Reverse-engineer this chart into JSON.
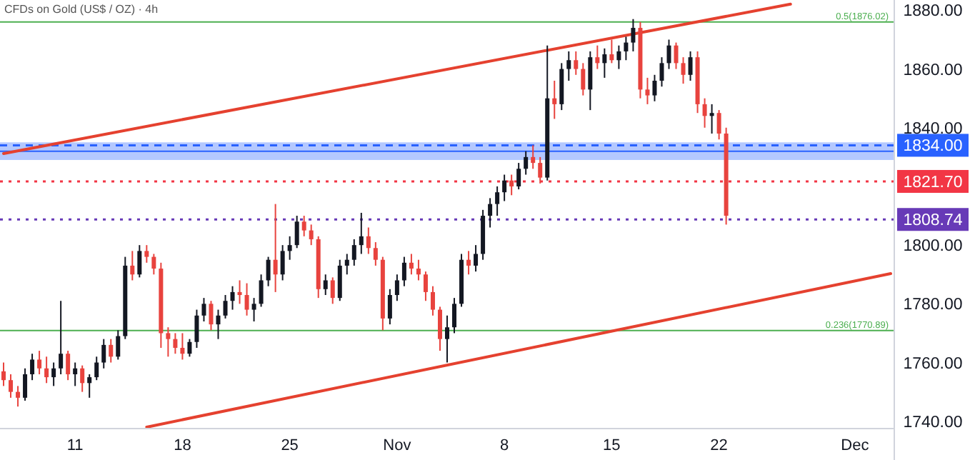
{
  "chart_data": {
    "type": "candlestick",
    "title": "CFDs on Gold (US$ / OZ) · 4h",
    "categories": [
      null,
      null,
      null,
      null,
      null,
      null,
      null,
      null,
      null,
      null,
      "11",
      null,
      null,
      null,
      null,
      null,
      null,
      null,
      null,
      null,
      null,
      null,
      null,
      null,
      null,
      "18",
      null,
      null,
      null,
      null,
      null,
      null,
      null,
      null,
      null,
      null,
      null,
      null,
      null,
      null,
      "25",
      null,
      null,
      null,
      null,
      null,
      null,
      null,
      null,
      null,
      null,
      null,
      null,
      null,
      null,
      "Nov",
      null,
      null,
      null,
      null,
      null,
      null,
      null,
      null,
      null,
      null,
      null,
      null,
      null,
      null,
      "8",
      null,
      null,
      null,
      null,
      null,
      null,
      null,
      null,
      null,
      null,
      null,
      null,
      null,
      null,
      "15",
      null,
      null,
      null,
      null,
      null,
      null,
      null,
      null,
      null,
      null,
      null,
      null,
      null,
      null,
      "22",
      null,
      null,
      null,
      null,
      null,
      null,
      null,
      null,
      null,
      null,
      null,
      null,
      null,
      null,
      null,
      null,
      null,
      null,
      "Dec",
      null,
      null,
      null,
      null,
      null
    ],
    "ohlc": [
      [
        1757,
        1760,
        1752,
        1754
      ],
      [
        1754,
        1756,
        1748,
        1750
      ],
      [
        1750,
        1752,
        1745,
        1748
      ],
      [
        1748,
        1758,
        1747,
        1756
      ],
      [
        1756,
        1763,
        1754,
        1761
      ],
      [
        1761,
        1764,
        1756,
        1758
      ],
      [
        1758,
        1762,
        1753,
        1755
      ],
      [
        1755,
        1760,
        1752,
        1758
      ],
      [
        1758,
        1781,
        1756,
        1763
      ],
      [
        1763,
        1764,
        1754,
        1756
      ],
      [
        1756,
        1760,
        1752,
        1758
      ],
      [
        1758,
        1759,
        1750,
        1753
      ],
      [
        1753,
        1756,
        1748,
        1755
      ],
      [
        1755,
        1762,
        1754,
        1760
      ],
      [
        1760,
        1768,
        1758,
        1766
      ],
      [
        1766,
        1768,
        1760,
        1762
      ],
      [
        1762,
        1771,
        1761,
        1769
      ],
      [
        1769,
        1796,
        1768,
        1793
      ],
      [
        1793,
        1798,
        1788,
        1790
      ],
      [
        1790,
        1800,
        1789,
        1798
      ],
      [
        1798,
        1800,
        1794,
        1796
      ],
      [
        1796,
        1797,
        1790,
        1792
      ],
      [
        1792,
        1794,
        1765,
        1770
      ],
      [
        1770,
        1772,
        1762,
        1768
      ],
      [
        1768,
        1770,
        1763,
        1765
      ],
      [
        1765,
        1770,
        1761,
        1763
      ],
      [
        1763,
        1768,
        1762,
        1767
      ],
      [
        1767,
        1778,
        1765,
        1776
      ],
      [
        1776,
        1782,
        1774,
        1780
      ],
      [
        1780,
        1781,
        1771,
        1773
      ],
      [
        1773,
        1778,
        1768,
        1776
      ],
      [
        1776,
        1783,
        1775,
        1781
      ],
      [
        1781,
        1786,
        1778,
        1784
      ],
      [
        1784,
        1788,
        1780,
        1783
      ],
      [
        1783,
        1787,
        1776,
        1778
      ],
      [
        1778,
        1782,
        1774,
        1780
      ],
      [
        1780,
        1790,
        1779,
        1788
      ],
      [
        1788,
        1796,
        1786,
        1795
      ],
      [
        1795,
        1814,
        1784,
        1790
      ],
      [
        1790,
        1800,
        1788,
        1798
      ],
      [
        1798,
        1803,
        1795,
        1800
      ],
      [
        1800,
        1810,
        1799,
        1808
      ],
      [
        1808,
        1810,
        1803,
        1805
      ],
      [
        1805,
        1807,
        1800,
        1802
      ],
      [
        1802,
        1803,
        1782,
        1785
      ],
      [
        1785,
        1790,
        1783,
        1788
      ],
      [
        1788,
        1789,
        1780,
        1782
      ],
      [
        1782,
        1795,
        1781,
        1793
      ],
      [
        1793,
        1797,
        1790,
        1795
      ],
      [
        1795,
        1802,
        1793,
        1800
      ],
      [
        1800,
        1811,
        1797,
        1803
      ],
      [
        1803,
        1806,
        1797,
        1799
      ],
      [
        1799,
        1801,
        1793,
        1795
      ],
      [
        1795,
        1796,
        1771,
        1775
      ],
      [
        1775,
        1785,
        1773,
        1783
      ],
      [
        1783,
        1790,
        1781,
        1788
      ],
      [
        1788,
        1796,
        1786,
        1794
      ],
      [
        1794,
        1797,
        1790,
        1792
      ],
      [
        1792,
        1795,
        1788,
        1790
      ],
      [
        1790,
        1791,
        1781,
        1784
      ],
      [
        1784,
        1786,
        1776,
        1778
      ],
      [
        1778,
        1779,
        1764,
        1768
      ],
      [
        1768,
        1776,
        1760,
        1772
      ],
      [
        1772,
        1782,
        1770,
        1780
      ],
      [
        1780,
        1797,
        1779,
        1795
      ],
      [
        1795,
        1798,
        1790,
        1793
      ],
      [
        1793,
        1800,
        1791,
        1797
      ],
      [
        1797,
        1812,
        1795,
        1810
      ],
      [
        1810,
        1816,
        1806,
        1814
      ],
      [
        1814,
        1820,
        1810,
        1818
      ],
      [
        1818,
        1824,
        1815,
        1822
      ],
      [
        1822,
        1824,
        1817,
        1820
      ],
      [
        1820,
        1828,
        1819,
        1826
      ],
      [
        1826,
        1832,
        1824,
        1830
      ],
      [
        1830,
        1834,
        1826,
        1828
      ],
      [
        1828,
        1830,
        1821,
        1823
      ],
      [
        1823,
        1868,
        1822,
        1850
      ],
      [
        1850,
        1856,
        1843,
        1848
      ],
      [
        1848,
        1862,
        1846,
        1860
      ],
      [
        1860,
        1866,
        1856,
        1863
      ],
      [
        1863,
        1866,
        1858,
        1860
      ],
      [
        1860,
        1862,
        1851,
        1853
      ],
      [
        1853,
        1866,
        1846,
        1864
      ],
      [
        1864,
        1868,
        1860,
        1862
      ],
      [
        1862,
        1867,
        1857,
        1865
      ],
      [
        1865,
        1870,
        1862,
        1863
      ],
      [
        1863,
        1868,
        1860,
        1866
      ],
      [
        1866,
        1871,
        1863,
        1869
      ],
      [
        1869,
        1877,
        1866,
        1874
      ],
      [
        1874,
        1876,
        1850,
        1853
      ],
      [
        1853,
        1857,
        1848,
        1851
      ],
      [
        1851,
        1858,
        1849,
        1856
      ],
      [
        1856,
        1864,
        1854,
        1862
      ],
      [
        1862,
        1870,
        1860,
        1868
      ],
      [
        1868,
        1869,
        1860,
        1862
      ],
      [
        1862,
        1864,
        1855,
        1858
      ],
      [
        1858,
        1866,
        1856,
        1864
      ],
      [
        1864,
        1866,
        1845,
        1848
      ],
      [
        1848,
        1850,
        1840,
        1844
      ],
      [
        1844,
        1848,
        1838,
        1845
      ],
      [
        1845,
        1846,
        1836,
        1838
      ],
      [
        1838,
        1840,
        1807,
        1810
      ],
      null,
      null,
      null,
      null,
      null,
      null,
      null,
      null,
      null,
      null,
      null,
      null,
      null,
      null,
      null,
      null,
      null,
      null,
      null,
      null,
      null,
      null,
      null
    ],
    "series": [
      {
        "type": "line",
        "values": [
          1831.2,
          null,
          null,
          null,
          null,
          null,
          null,
          null,
          null,
          null,
          null,
          null,
          null,
          null,
          null,
          null,
          null,
          null,
          null,
          null,
          null,
          null,
          null,
          null,
          null,
          null,
          null,
          null,
          null,
          null,
          null,
          null,
          null,
          null,
          null,
          null,
          null,
          null,
          null,
          null,
          null,
          null,
          null,
          null,
          null,
          null,
          null,
          null,
          null,
          null,
          null,
          null,
          null,
          null,
          null,
          null,
          null,
          null,
          null,
          null,
          null,
          null,
          null,
          null,
          null,
          null,
          null,
          null,
          null,
          null,
          null,
          null,
          null,
          null,
          null,
          null,
          null,
          null,
          null,
          null,
          null,
          null,
          null,
          null,
          null,
          null,
          null,
          null,
          null,
          null,
          null,
          null,
          null,
          null,
          null,
          null,
          null,
          null,
          null,
          null,
          null,
          null,
          null,
          null,
          null,
          null,
          null,
          null,
          null,
          null,
          1882.1,
          null,
          null,
          null,
          null,
          null,
          null,
          null,
          null,
          null,
          null,
          null,
          null,
          null,
          null
        ],
        "color": "#e5412f"
      },
      {
        "type": "line",
        "values": [
          null,
          null,
          null,
          null,
          null,
          null,
          null,
          null,
          null,
          null,
          null,
          null,
          null,
          null,
          null,
          null,
          null,
          null,
          null,
          null,
          1738,
          null,
          null,
          null,
          null,
          null,
          null,
          null,
          null,
          null,
          null,
          null,
          null,
          null,
          null,
          null,
          null,
          null,
          null,
          null,
          null,
          null,
          null,
          null,
          null,
          null,
          null,
          null,
          null,
          null,
          null,
          null,
          null,
          null,
          null,
          null,
          null,
          null,
          null,
          null,
          null,
          null,
          null,
          null,
          null,
          null,
          null,
          null,
          null,
          null,
          null,
          null,
          null,
          null,
          null,
          null,
          null,
          null,
          null,
          null,
          null,
          null,
          null,
          null,
          null,
          null,
          null,
          null,
          null,
          null,
          null,
          null,
          null,
          null,
          null,
          null,
          null,
          null,
          null,
          null,
          null,
          null,
          null,
          null,
          null,
          null,
          null,
          null,
          null,
          null,
          null,
          null,
          null,
          null,
          null,
          null,
          null,
          null,
          null,
          null,
          null,
          null,
          null,
          null,
          1790.3
        ],
        "color": "#e5412f"
      }
    ],
    "ylim": [
      1737.5,
      1883.5
    ],
    "yticks": [
      {
        "value": 1740,
        "label": "1740.00"
      },
      {
        "value": 1760,
        "label": "1760.00"
      },
      {
        "value": 1780,
        "label": "1780.00"
      },
      {
        "value": 1800,
        "label": "1800.00"
      },
      {
        "value": 1840,
        "label": "1840.00"
      },
      {
        "value": 1860,
        "label": "1860.00"
      },
      {
        "value": 1880,
        "label": "1880.00"
      }
    ],
    "bands": [
      {
        "axis": "y",
        "from": 1829,
        "to": 1835,
        "color": "#2962ff"
      }
    ],
    "ref_lines": [
      {
        "axis": "y",
        "value": 1876.02,
        "label": "0.5(1876.02)",
        "color": "#4caf50",
        "line_style": "solid"
      },
      {
        "axis": "y",
        "value": 1770.89,
        "label": "0.236(1770.89)",
        "color": "#4caf50",
        "line_style": "solid"
      },
      {
        "axis": "y",
        "value": 1834,
        "label": "1834.00",
        "color": "#2962ff",
        "line_style": "dashed"
      },
      {
        "axis": "y",
        "value": 1832,
        "color": "#2962ff",
        "line_style": "solid"
      },
      {
        "axis": "y",
        "value": 1821.7,
        "label": "1821.70",
        "color": "#f23645",
        "line_style": "dotted"
      },
      {
        "axis": "y",
        "value": 1808.74,
        "label": "1808.74",
        "color": "#673ab7",
        "line_style": "dotted"
      }
    ],
    "grid": false
  }
}
